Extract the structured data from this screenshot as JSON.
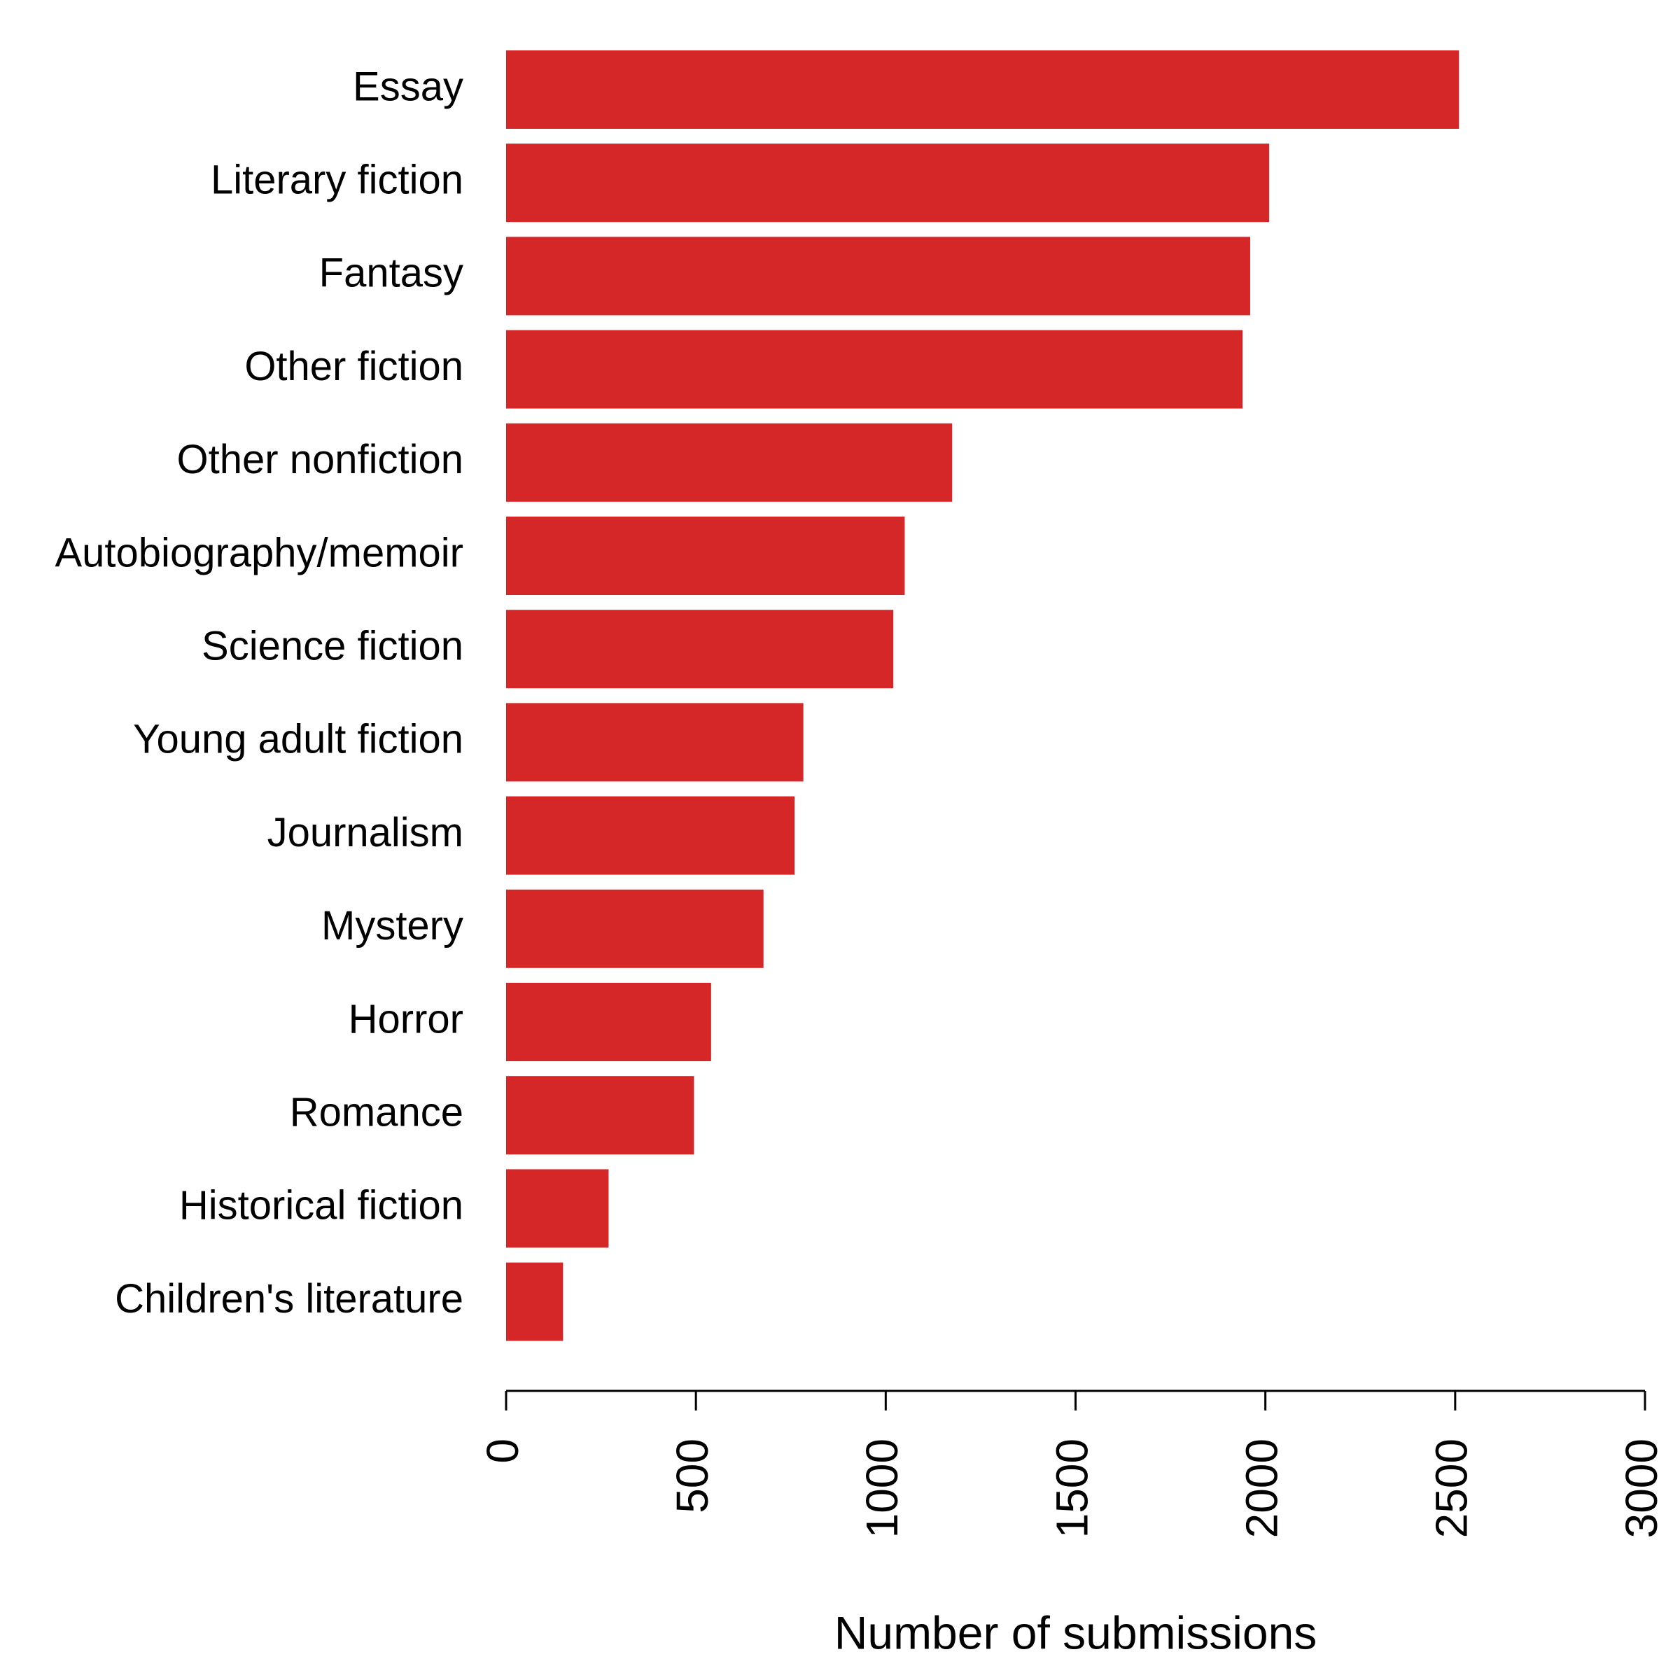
{
  "chart_data": {
    "type": "bar",
    "orientation": "horizontal",
    "title": "",
    "xlabel": "Number of submissions",
    "ylabel": "",
    "categories": [
      "Essay",
      "Literary fiction",
      "Fantasy",
      "Other fiction",
      "Other nonfiction",
      "Autobiography/memoir",
      "Science fiction",
      "Young adult fiction",
      "Journalism",
      "Mystery",
      "Horror",
      "Romance",
      "Historical fiction",
      "Children's literature"
    ],
    "values": [
      2510,
      2010,
      1960,
      1940,
      1175,
      1050,
      1020,
      783,
      760,
      678,
      540,
      495,
      270,
      150
    ],
    "xlim": [
      0,
      3000
    ],
    "xticks": [
      "0",
      "500",
      "1000",
      "1500",
      "2000",
      "2500",
      "3000"
    ],
    "grid": false,
    "legend": "none",
    "bar_color": "#d62728"
  }
}
